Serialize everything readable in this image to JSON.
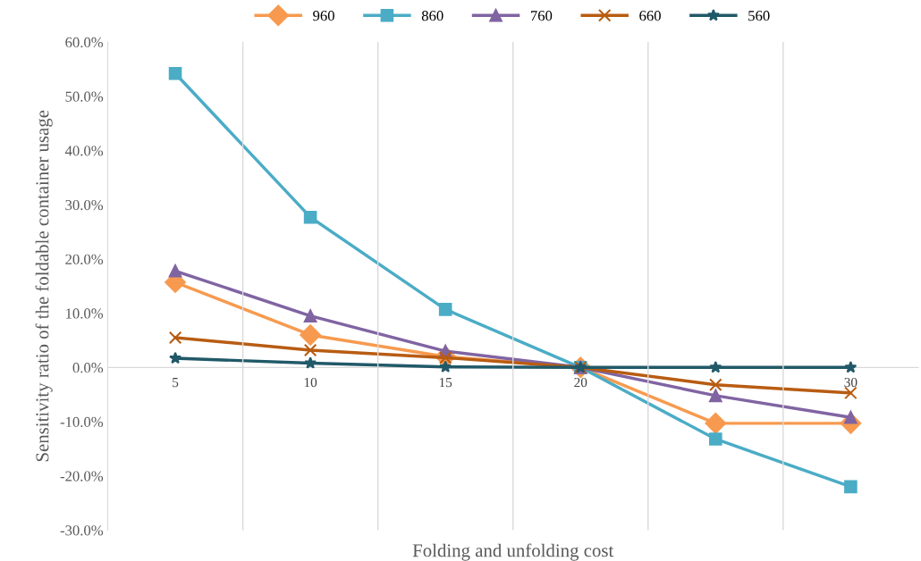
{
  "chart_data": {
    "type": "line",
    "xlabel": "Folding and unfolding cost",
    "ylabel": "Sensitivity ratio of the foldable container usage",
    "categories": [
      "5",
      "10",
      "15",
      "20",
      null,
      "30"
    ],
    "series": [
      {
        "name": "960",
        "color": "#f79a4f",
        "marker": "diamond",
        "values": [
          15.7,
          6.0,
          2.0,
          0,
          -10.3,
          -10.3
        ]
      },
      {
        "name": "860",
        "color": "#4bacc6",
        "marker": "square",
        "values": [
          54.2,
          27.7,
          10.7,
          0,
          -13.2,
          -22.0
        ]
      },
      {
        "name": "760",
        "color": "#8064a2",
        "marker": "triangle",
        "values": [
          17.8,
          9.5,
          3.0,
          0,
          -5.2,
          -9.2
        ]
      },
      {
        "name": "660",
        "color": "#b85c12",
        "marker": "cross",
        "values": [
          5.5,
          3.2,
          1.8,
          0,
          -3.2,
          -4.7
        ]
      },
      {
        "name": "560",
        "color": "#215968",
        "marker": "star",
        "values": [
          1.7,
          0.8,
          0.1,
          0,
          0,
          0
        ]
      }
    ],
    "ylim": [
      -30,
      60
    ],
    "yticks": [
      {
        "value": -30,
        "label": "-30.0%"
      },
      {
        "value": -20,
        "label": "-20.0%"
      },
      {
        "value": -10,
        "label": "-10.0%"
      },
      {
        "value": 0,
        "label": "0.0%"
      },
      {
        "value": 10,
        "label": "10.0%"
      },
      {
        "value": 20,
        "label": "20.0%"
      },
      {
        "value": 30,
        "label": "30.0%"
      },
      {
        "value": 40,
        "label": "40.0%"
      },
      {
        "value": 50,
        "label": "50.0%"
      },
      {
        "value": 60,
        "label": "60.0%"
      }
    ],
    "grid": "x",
    "legend": "top",
    "line_style": "solid"
  }
}
